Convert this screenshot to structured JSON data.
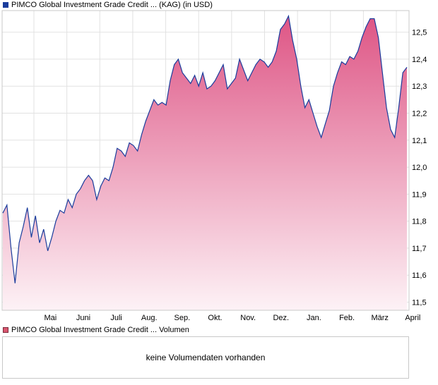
{
  "price_legend": {
    "label": "PIMCO Global Investment Grade Credit ... (KAG) (in USD)",
    "color": "#1a3c9c"
  },
  "volume_legend": {
    "label": "PIMCO Global Investment Grade Credit ... Volumen",
    "color": "#d9566f"
  },
  "volume_panel": {
    "message": "keine Volumendaten vorhanden"
  },
  "chart_data": {
    "type": "area",
    "title": "PIMCO Global Investment Grade Credit ... (KAG) (in USD)",
    "xlabel": "",
    "ylabel": "",
    "x_tick_labels": [
      "Mai",
      "Juni",
      "Juli",
      "Aug.",
      "Sep.",
      "Okt.",
      "Nov.",
      "Dez.",
      "Jan.",
      "Feb.",
      "März",
      "April"
    ],
    "y_tick_labels": [
      "11,5",
      "11,6",
      "11,7",
      "11,8",
      "11,9",
      "12,0",
      "12,1",
      "12,2",
      "12,3",
      "12,4",
      "12,5"
    ],
    "y_ticks": [
      11.5,
      11.6,
      11.7,
      11.8,
      11.9,
      12.0,
      12.1,
      12.2,
      12.3,
      12.4,
      12.5
    ],
    "ylim": [
      11.47,
      12.58
    ],
    "grid": true,
    "line_color": "#1a3c9c",
    "fill_color_top": "#de5585",
    "fill_color_bottom": "#fdf2f6",
    "series": [
      {
        "x": [
          "Apr 1",
          "Apr 5",
          "Apr 8",
          "Apr 12",
          "Apr 15",
          "Apr 19",
          "Apr 22",
          "Apr 26",
          "May 1",
          "May 5",
          "May 8",
          "May 12",
          "May 15",
          "May 19",
          "May 22",
          "May 26",
          "Jun 1",
          "Jun 5",
          "Jun 8",
          "Jun 12",
          "Jun 15",
          "Jun 19",
          "Jun 22",
          "Jun 26",
          "Jul 1",
          "Jul 5",
          "Jul 8",
          "Jul 12",
          "Jul 15",
          "Jul 19",
          "Jul 22",
          "Jul 26",
          "Aug 1",
          "Aug 5",
          "Aug 8",
          "Aug 12",
          "Aug 15",
          "Aug 19",
          "Aug 22",
          "Aug 26",
          "Sep 1",
          "Sep 5",
          "Sep 8",
          "Sep 12",
          "Sep 15",
          "Sep 19",
          "Sep 22",
          "Sep 26",
          "Oct 1",
          "Oct 5",
          "Oct 8",
          "Oct 12",
          "Oct 15",
          "Oct 19",
          "Oct 22",
          "Oct 26",
          "Nov 1",
          "Nov 5",
          "Nov 8",
          "Nov 12",
          "Nov 15",
          "Nov 19",
          "Nov 22",
          "Nov 26",
          "Dec 1",
          "Dec 5",
          "Dec 8",
          "Dec 12",
          "Dec 15",
          "Dec 19",
          "Dec 22",
          "Dec 26",
          "Jan 1",
          "Jan 5",
          "Jan 8",
          "Jan 12",
          "Jan 15",
          "Jan 19",
          "Jan 22",
          "Jan 26",
          "Feb 1",
          "Feb 5",
          "Feb 8",
          "Feb 12",
          "Feb 15",
          "Feb 19",
          "Feb 22",
          "Feb 26",
          "Mar 1",
          "Mar 5",
          "Mar 8",
          "Mar 12",
          "Mar 15",
          "Mar 19",
          "Mar 22",
          "Mar 26",
          "Apr 1",
          "Apr 5",
          "Apr 8",
          "Apr 12"
        ],
        "values": [
          11.83,
          11.86,
          11.7,
          11.57,
          11.72,
          11.78,
          11.85,
          11.74,
          11.82,
          11.72,
          11.77,
          11.69,
          11.74,
          11.8,
          11.84,
          11.83,
          11.88,
          11.85,
          11.9,
          11.92,
          11.95,
          11.97,
          11.95,
          11.88,
          11.93,
          11.96,
          11.95,
          12.0,
          12.07,
          12.06,
          12.04,
          12.09,
          12.08,
          12.06,
          12.12,
          12.17,
          12.21,
          12.25,
          12.23,
          12.24,
          12.23,
          12.32,
          12.38,
          12.4,
          12.35,
          12.33,
          12.31,
          12.34,
          12.3,
          12.35,
          12.29,
          12.3,
          12.32,
          12.35,
          12.38,
          12.29,
          12.31,
          12.33,
          12.4,
          12.36,
          12.32,
          12.35,
          12.38,
          12.4,
          12.39,
          12.37,
          12.39,
          12.43,
          12.51,
          12.53,
          12.56,
          12.47,
          12.4,
          12.3,
          12.22,
          12.25,
          12.2,
          12.15,
          12.11,
          12.16,
          12.21,
          12.3,
          12.35,
          12.39,
          12.38,
          12.41,
          12.4,
          12.43,
          12.48,
          12.52,
          12.55,
          12.55,
          12.48,
          12.35,
          12.22,
          12.14,
          12.11,
          12.22,
          12.35,
          12.37
        ],
        "note_positions": "x values are evenly spaced weekly-ish samples across the plotted year"
      }
    ]
  }
}
